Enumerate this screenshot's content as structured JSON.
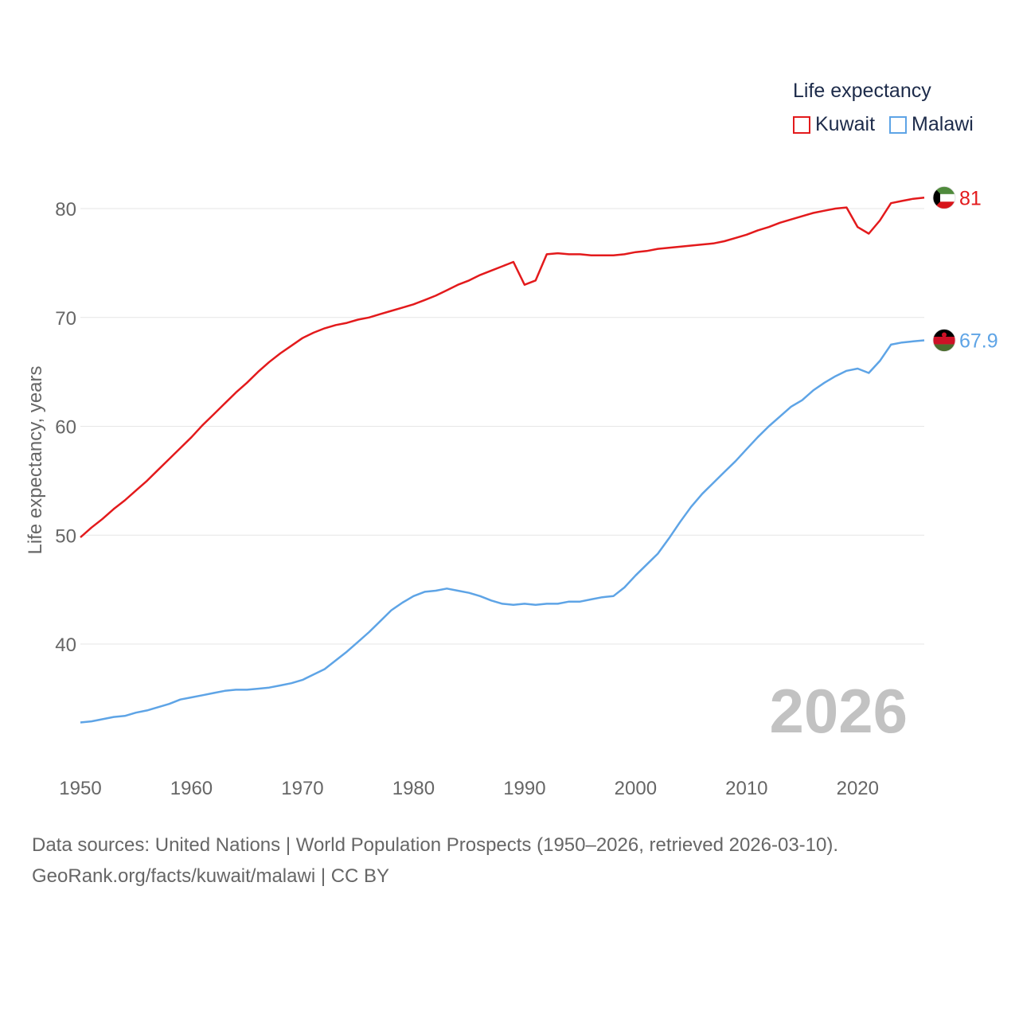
{
  "chart_data": {
    "type": "line",
    "title": "",
    "xlabel": "",
    "ylabel": "Life expectancy, years",
    "xlim": [
      1950,
      2026
    ],
    "ylim": [
      28,
      84
    ],
    "x_ticks": [
      1950,
      1960,
      1970,
      1980,
      1990,
      2000,
      2010,
      2020
    ],
    "y_ticks": [
      40,
      50,
      60,
      70,
      80
    ],
    "grid": true,
    "legend_title": "Life expectancy",
    "year_watermark": "2026",
    "x": [
      1950,
      1951,
      1952,
      1953,
      1954,
      1955,
      1956,
      1957,
      1958,
      1959,
      1960,
      1961,
      1962,
      1963,
      1964,
      1965,
      1966,
      1967,
      1968,
      1969,
      1970,
      1971,
      1972,
      1973,
      1974,
      1975,
      1976,
      1977,
      1978,
      1979,
      1980,
      1981,
      1982,
      1983,
      1984,
      1985,
      1986,
      1987,
      1988,
      1989,
      1990,
      1991,
      1992,
      1993,
      1994,
      1995,
      1996,
      1997,
      1998,
      1999,
      2000,
      2001,
      2002,
      2003,
      2004,
      2005,
      2006,
      2007,
      2008,
      2009,
      2010,
      2011,
      2012,
      2013,
      2014,
      2015,
      2016,
      2017,
      2018,
      2019,
      2020,
      2021,
      2022,
      2023,
      2024,
      2025,
      2026
    ],
    "series": [
      {
        "name": "Kuwait",
        "color": "#e31a1c",
        "end_label": "81",
        "flag": "kuwait-flag",
        "values": [
          49.8,
          50.7,
          51.5,
          52.4,
          53.2,
          54.1,
          55.0,
          56.0,
          57.0,
          58.0,
          59.0,
          60.1,
          61.1,
          62.1,
          63.1,
          64.0,
          65.0,
          65.9,
          66.7,
          67.4,
          68.1,
          68.6,
          69.0,
          69.3,
          69.5,
          69.8,
          70.0,
          70.3,
          70.6,
          70.9,
          71.2,
          71.6,
          72.0,
          72.5,
          73.0,
          73.4,
          73.9,
          74.3,
          74.7,
          75.1,
          73.0,
          73.4,
          75.8,
          75.9,
          75.8,
          75.8,
          75.7,
          75.7,
          75.7,
          75.8,
          76.0,
          76.1,
          76.3,
          76.4,
          76.5,
          76.6,
          76.7,
          76.8,
          77.0,
          77.3,
          77.6,
          78.0,
          78.3,
          78.7,
          79.0,
          79.3,
          79.6,
          79.8,
          80.0,
          80.1,
          78.3,
          77.7,
          78.9,
          80.5,
          80.7,
          80.9,
          81.0
        ]
      },
      {
        "name": "Malawi",
        "color": "#5ea4e6",
        "end_label": "67.9",
        "flag": "malawi-flag",
        "values": [
          32.8,
          32.9,
          33.1,
          33.3,
          33.4,
          33.7,
          33.9,
          34.2,
          34.5,
          34.9,
          35.1,
          35.3,
          35.5,
          35.7,
          35.8,
          35.8,
          35.9,
          36.0,
          36.2,
          36.4,
          36.7,
          37.2,
          37.7,
          38.5,
          39.3,
          40.2,
          41.1,
          42.1,
          43.1,
          43.8,
          44.4,
          44.8,
          44.9,
          45.1,
          44.9,
          44.7,
          44.4,
          44.0,
          43.7,
          43.6,
          43.7,
          43.6,
          43.7,
          43.7,
          43.9,
          43.9,
          44.1,
          44.3,
          44.4,
          45.2,
          46.3,
          47.3,
          48.3,
          49.7,
          51.2,
          52.6,
          53.8,
          54.8,
          55.8,
          56.8,
          57.9,
          59.0,
          60.0,
          60.9,
          61.8,
          62.4,
          63.3,
          64.0,
          64.6,
          65.1,
          65.3,
          64.9,
          66.0,
          67.5,
          67.7,
          67.8,
          67.9
        ]
      }
    ]
  },
  "footer": {
    "line1": "Data sources: United Nations | World Population Prospects (1950–2026, retrieved 2026-03-10).",
    "line2": "GeoRank.org/facts/kuwait/malawi | CC BY"
  }
}
